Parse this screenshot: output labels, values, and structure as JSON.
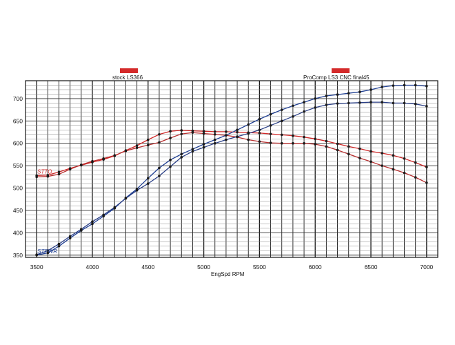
{
  "chart_data": {
    "type": "line",
    "legend": [
      {
        "label": "stock LS366",
        "color": "#d42a2a"
      },
      {
        "label": "ProComp LS3 CNC final45",
        "color": "#d42a2a"
      }
    ],
    "xlabel": "EngSpd  RPM",
    "xlim": [
      3400,
      7100
    ],
    "ylim": [
      345,
      740
    ],
    "xticks": [
      3500,
      4000,
      4500,
      5000,
      5500,
      6000,
      6500,
      7000
    ],
    "yticks": [
      350,
      400,
      450,
      500,
      550,
      600,
      650,
      700
    ],
    "x": [
      3500,
      3600,
      3700,
      3800,
      3900,
      4000,
      4100,
      4200,
      4300,
      4400,
      4500,
      4600,
      4700,
      4800,
      4900,
      5000,
      5100,
      5200,
      5300,
      5400,
      5500,
      5600,
      5700,
      5800,
      5900,
      6000,
      6100,
      6200,
      6300,
      6400,
      6500,
      6600,
      6700,
      6800,
      6900,
      7000
    ],
    "series": [
      {
        "name": "STTQ",
        "color": "#cf2727",
        "values": [
          528,
          529,
          536,
          544,
          551,
          558,
          564,
          572,
          584,
          595,
          608,
          620,
          627,
          629,
          628,
          627,
          626,
          626,
          625,
          624,
          623,
          621,
          619,
          617,
          614,
          610,
          605,
          599,
          593,
          588,
          582,
          578,
          573,
          566,
          557,
          547
        ]
      },
      {
        "name": "",
        "color": "#b83030",
        "values": [
          525,
          526,
          531,
          542,
          552,
          560,
          566,
          573,
          583,
          590,
          596,
          602,
          612,
          621,
          624,
          622,
          620,
          618,
          614,
          608,
          604,
          601,
          600,
          600,
          600,
          598,
          593,
          585,
          576,
          567,
          559,
          550,
          542,
          534,
          524,
          512
        ]
      },
      {
        "name": "STPWR",
        "color": "#1f3f93",
        "values": [
          350,
          355,
          370,
          388,
          405,
          420,
          437,
          455,
          478,
          498,
          522,
          545,
          563,
          576,
          587,
          598,
          608,
          618,
          630,
          642,
          654,
          665,
          675,
          684,
          692,
          700,
          706,
          709,
          712,
          715,
          720,
          726,
          729,
          730,
          730,
          728
        ]
      },
      {
        "name": "",
        "color": "#2a3f86",
        "values": [
          351,
          360,
          375,
          392,
          408,
          425,
          440,
          457,
          477,
          495,
          510,
          527,
          548,
          569,
          582,
          591,
          600,
          608,
          615,
          622,
          630,
          640,
          650,
          660,
          671,
          680,
          686,
          689,
          690,
          691,
          692,
          692,
          690,
          690,
          688,
          683
        ]
      }
    ]
  }
}
